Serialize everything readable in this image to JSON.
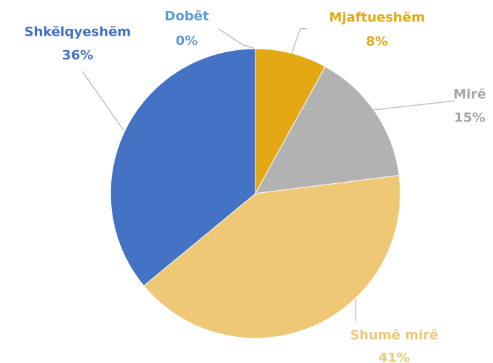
{
  "chart_data": {
    "type": "pie",
    "categories": [
      "Dobët",
      "Mjaftueshëm",
      "Mirë",
      "Shumë mirë",
      "Shkëlqyeshëm"
    ],
    "values": [
      0,
      8,
      15,
      41,
      36
    ],
    "value_labels": [
      "0%",
      "8%",
      "15%",
      "41%",
      "36%"
    ],
    "colors": [
      "#5b9bd5",
      "#e3a813",
      "#b2b2b2",
      "#eec875",
      "#4472c4"
    ]
  }
}
